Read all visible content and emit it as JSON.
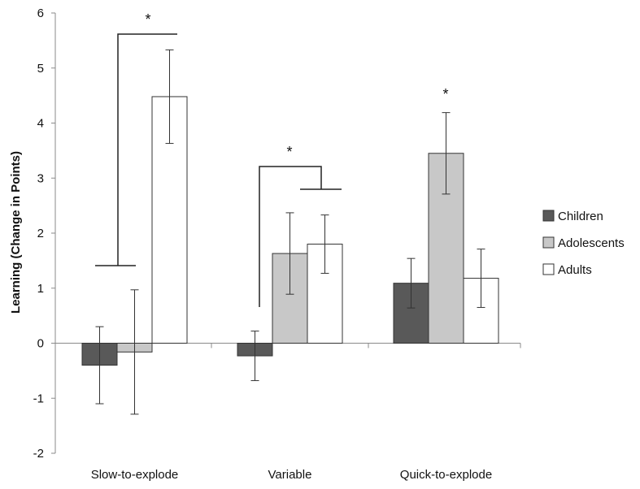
{
  "chart_data": {
    "type": "bar",
    "title": "",
    "xlabel": "",
    "ylabel": "Learning (Change in Points)",
    "ylim": [
      -2,
      6
    ],
    "yticks": [
      "-2",
      "-1",
      "0",
      "1",
      "2",
      "3",
      "4",
      "5",
      "6"
    ],
    "categories": [
      "Slow-to-explode",
      "Variable",
      "Quick-to-explode"
    ],
    "series": [
      {
        "name": "Children",
        "color": "#595959",
        "values": [
          -0.4,
          -0.23,
          1.09
        ],
        "errors": [
          0.7,
          0.45,
          0.45
        ]
      },
      {
        "name": "Adolescents",
        "color": "#c8c8c8",
        "values": [
          -0.16,
          1.63,
          3.45
        ],
        "errors": [
          1.13,
          0.74,
          0.74
        ]
      },
      {
        "name": "Adults",
        "color": "#ffffff",
        "values": [
          4.48,
          1.8,
          1.18
        ],
        "errors": [
          0.85,
          0.53,
          0.53
        ]
      }
    ],
    "grid": false,
    "legend_position": "right",
    "significance_marker": "*"
  }
}
